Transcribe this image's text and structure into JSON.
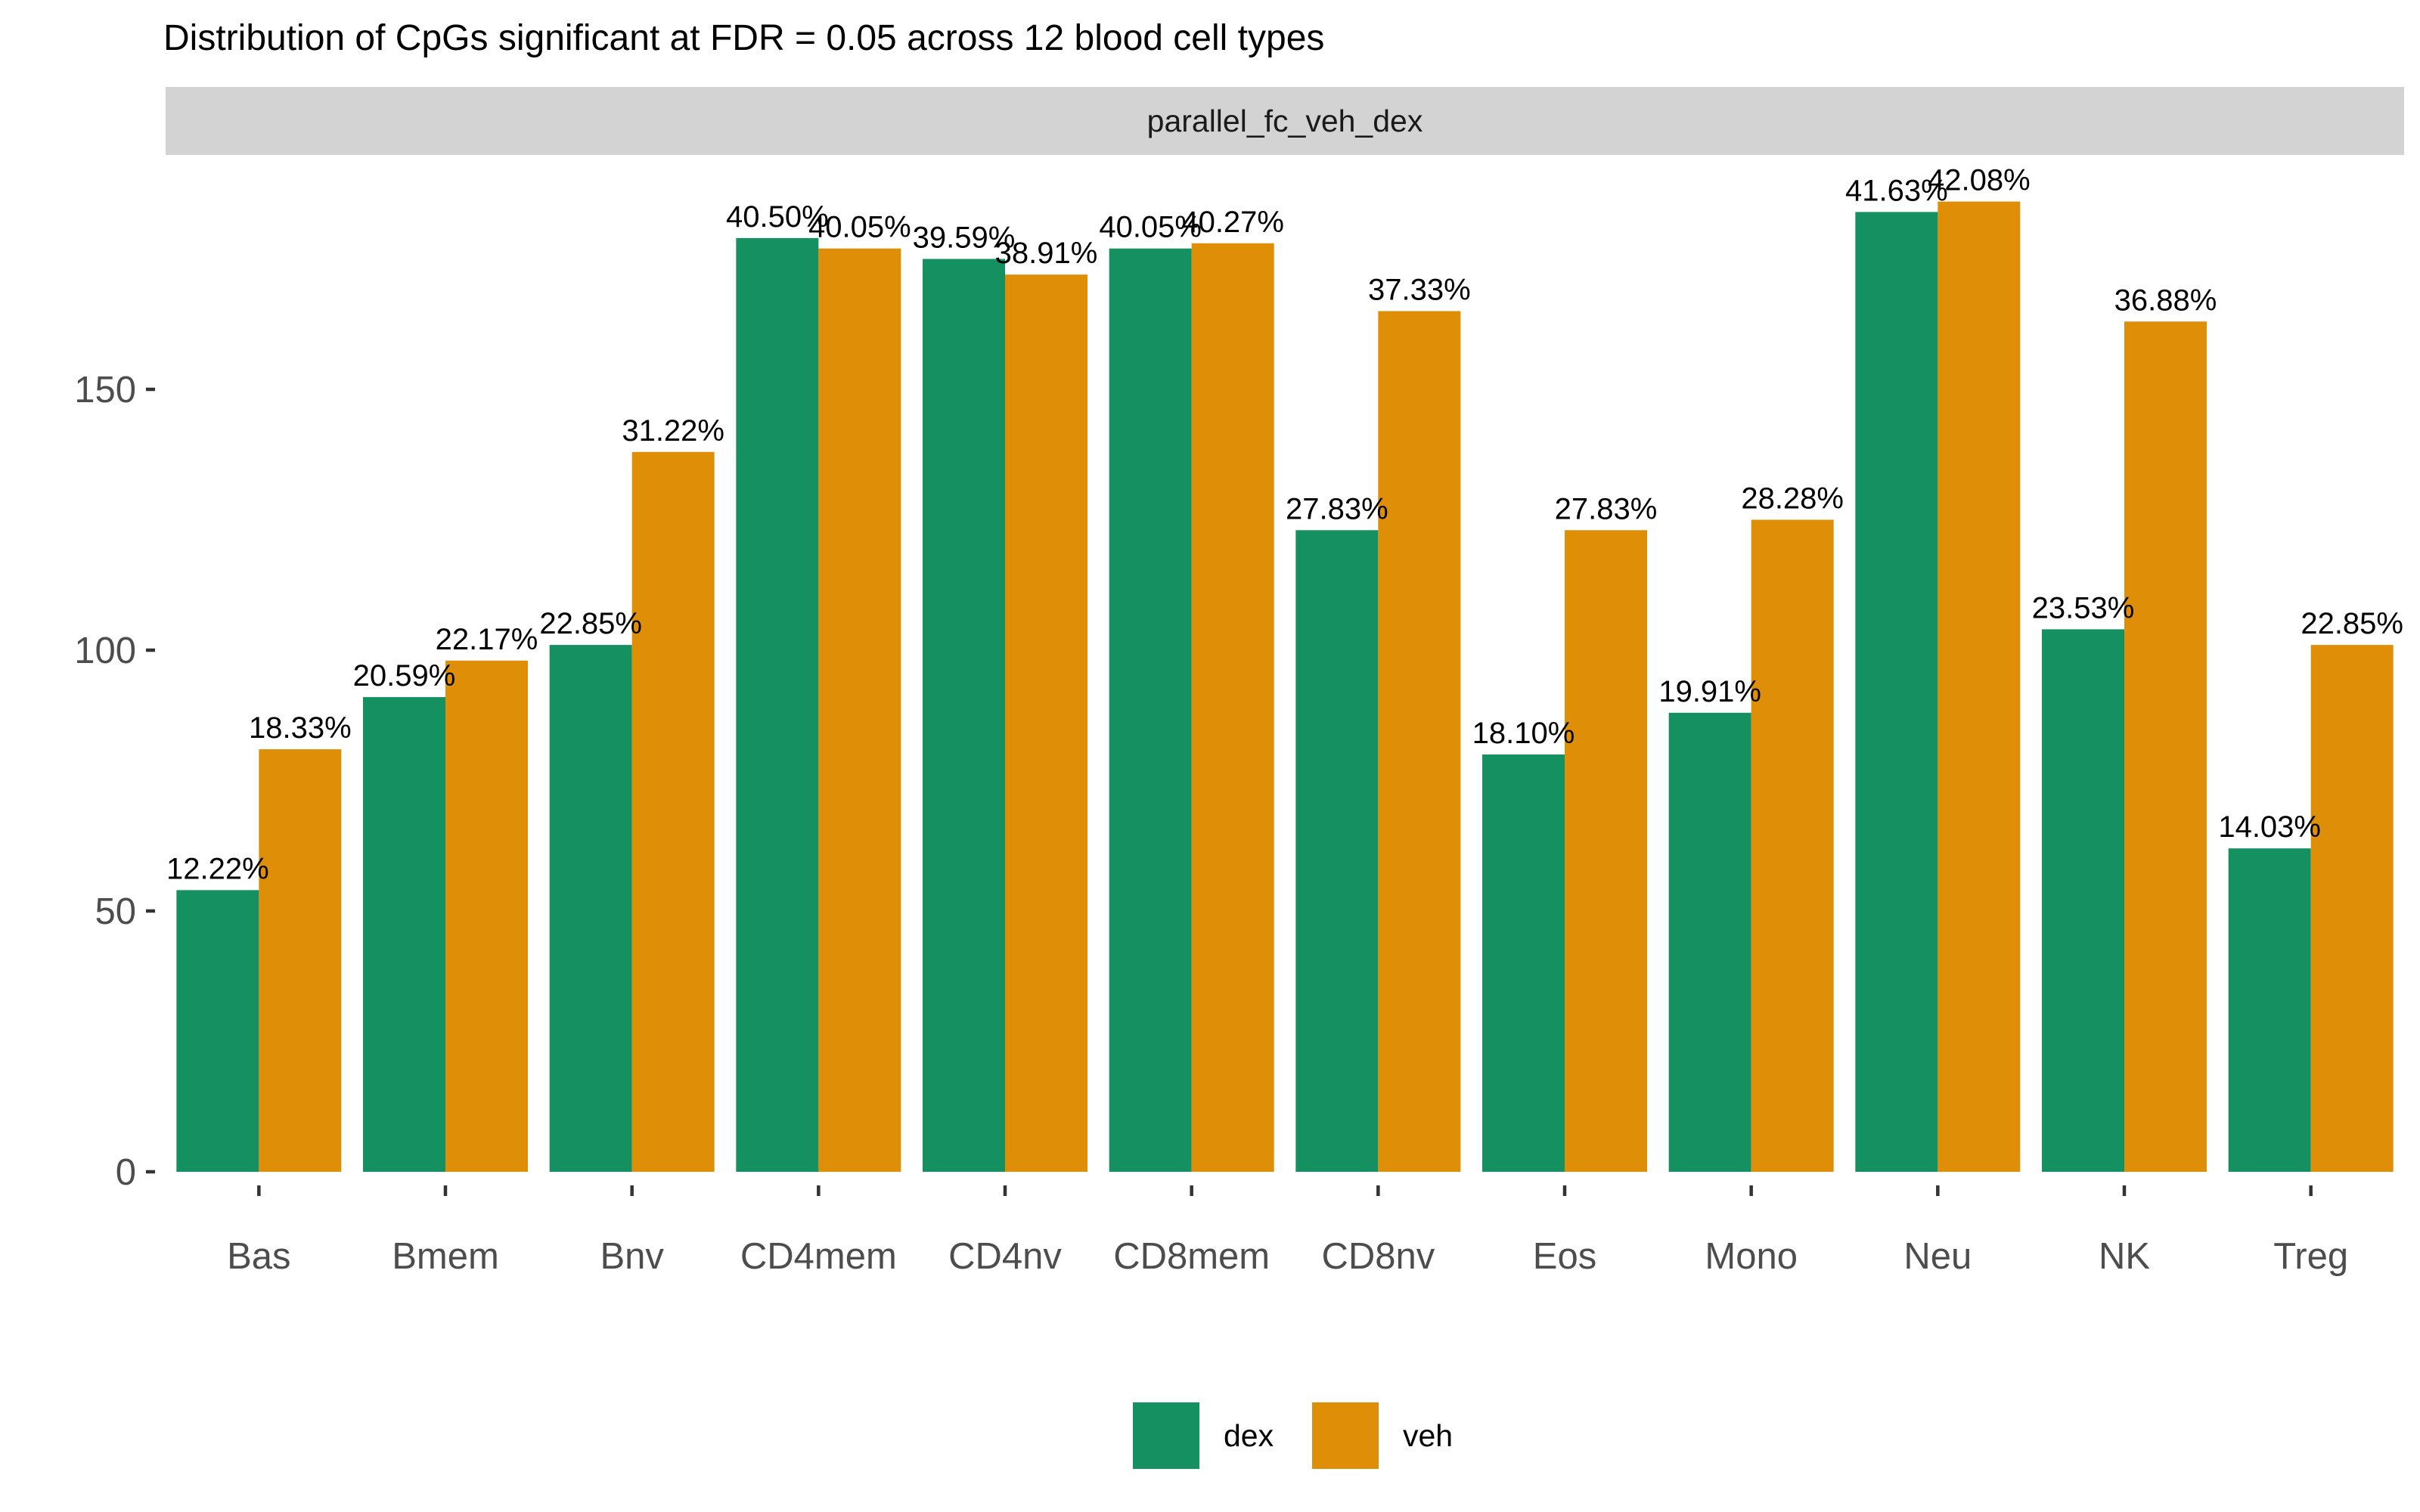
{
  "chart_data": {
    "type": "bar",
    "title": "Distribution of CpGs significant at FDR = 0.05 across 12 blood cell types",
    "facet_label": "parallel_fc_veh_dex",
    "xlabel": "",
    "ylabel": "",
    "ylim": [
      0,
      190
    ],
    "y_ticks": [
      0,
      50,
      100,
      150
    ],
    "grid": false,
    "legend_position": "bottom",
    "categories": [
      "Bas",
      "Bmem",
      "Bnv",
      "CD4mem",
      "CD4nv",
      "CD8mem",
      "CD8nv",
      "Eos",
      "Mono",
      "Neu",
      "NK",
      "Treg"
    ],
    "series": [
      {
        "name": "dex",
        "color": "#149061",
        "values": [
          54,
          91,
          101,
          179,
          175,
          177,
          123,
          80,
          88,
          184,
          104,
          62
        ],
        "labels": [
          "12.22%",
          "20.59%",
          "22.85%",
          "40.50%",
          "39.59%",
          "40.05%",
          "27.83%",
          "18.10%",
          "19.91%",
          "41.63%",
          "23.53%",
          "14.03%"
        ]
      },
      {
        "name": "veh",
        "color": "#DE8E07",
        "values": [
          81,
          98,
          138,
          177,
          172,
          178,
          165,
          123,
          125,
          186,
          163,
          101
        ],
        "labels": [
          "18.33%",
          "22.17%",
          "31.22%",
          "40.05%",
          "38.91%",
          "40.27%",
          "37.33%",
          "27.83%",
          "28.28%",
          "42.08%",
          "36.88%",
          "22.85%"
        ]
      }
    ]
  }
}
